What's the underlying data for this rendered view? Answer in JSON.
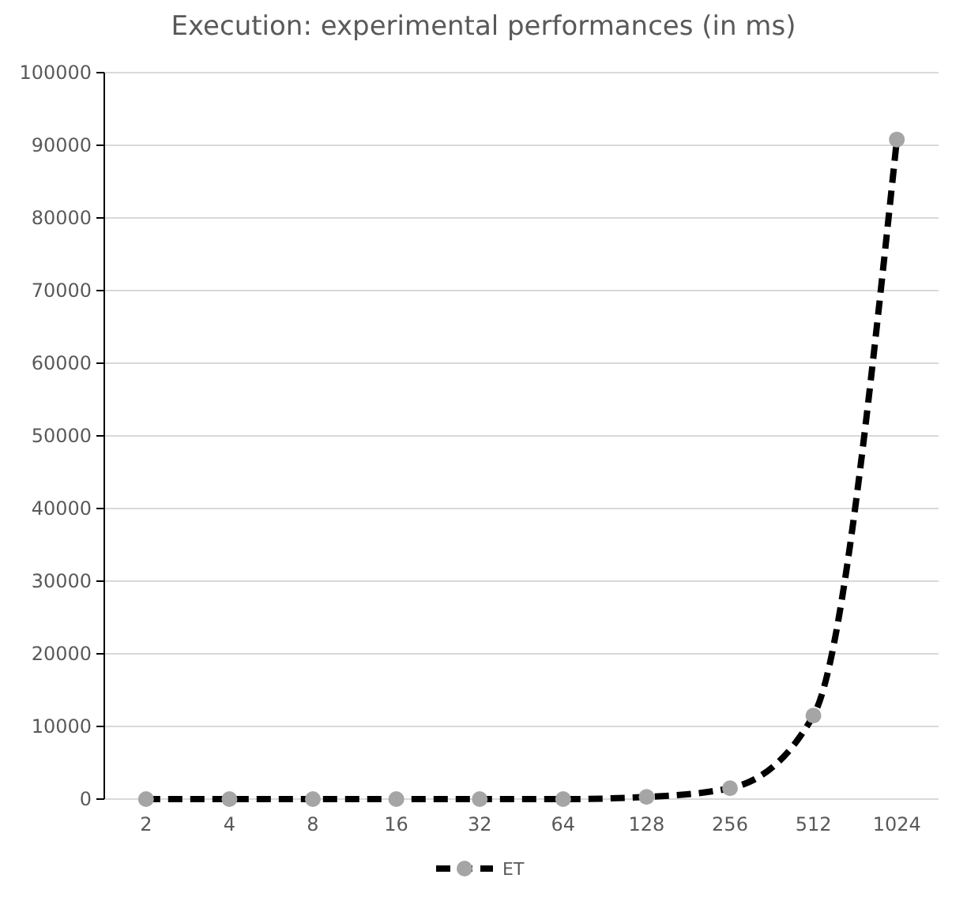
{
  "chart_data": {
    "type": "line",
    "title": "Execution: experimental performances (in ms)",
    "categories": [
      "2",
      "4",
      "8",
      "16",
      "32",
      "64",
      "128",
      "256",
      "512",
      "1024"
    ],
    "series": [
      {
        "name": "ET",
        "color": "#000000",
        "values": [
          0,
          0,
          0,
          0,
          0,
          0,
          300,
          1500,
          11500,
          90800
        ]
      }
    ],
    "ylim": [
      0,
      100000
    ],
    "yticks": [
      0,
      10000,
      20000,
      30000,
      40000,
      50000,
      60000,
      70000,
      80000,
      90000,
      100000
    ],
    "grid": "y",
    "legend": "bottom",
    "marker": "circle",
    "line_style": "dashed"
  }
}
